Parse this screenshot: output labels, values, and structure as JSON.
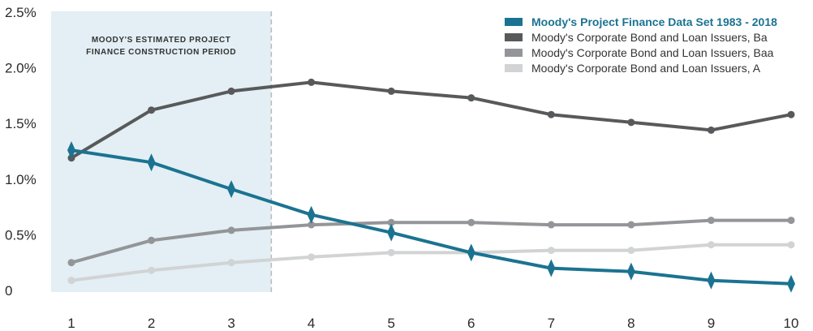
{
  "chart_data": {
    "type": "line",
    "x": [
      1,
      2,
      3,
      4,
      5,
      6,
      7,
      8,
      9,
      10
    ],
    "ylim": [
      0,
      2.5
    ],
    "xlim": [
      1,
      10
    ],
    "y_ticks": [
      {
        "value": 0,
        "label": "0"
      },
      {
        "value": 0.5,
        "label": "0.5%"
      },
      {
        "value": 1.0,
        "label": "1.0%"
      },
      {
        "value": 1.5,
        "label": "1.5%"
      },
      {
        "value": 2.0,
        "label": "2.0%"
      },
      {
        "value": 2.5,
        "label": "2.5%"
      }
    ],
    "x_tick_labels": [
      "1",
      "2",
      "3",
      "4",
      "5",
      "6",
      "7",
      "8",
      "9",
      "10"
    ],
    "shaded_region": {
      "x_start": 0.8,
      "x_end": 3.5,
      "label_line1": "MOODY'S ESTIMATED PROJECT",
      "label_line2": "FINANCE CONSTRUCTION PERIOD"
    },
    "legend_position": "top-right",
    "series": [
      {
        "name": "Moody's Project Finance Data Set 1983 - 2018",
        "color": "#1b7391",
        "marker": "diamond",
        "bold": true,
        "values": [
          1.26,
          1.15,
          0.91,
          0.68,
          0.52,
          0.34,
          0.2,
          0.17,
          0.09,
          0.06
        ]
      },
      {
        "name": "Moody's Corporate Bond and Loan Issuers, Ba",
        "color": "#58595b",
        "marker": "circle",
        "bold": false,
        "values": [
          1.19,
          1.62,
          1.79,
          1.87,
          1.79,
          1.73,
          1.58,
          1.51,
          1.44,
          1.58
        ]
      },
      {
        "name": "Moody's Corporate Bond and Loan Issuers, Baa",
        "color": "#939598",
        "marker": "circle",
        "bold": false,
        "values": [
          0.25,
          0.45,
          0.54,
          0.59,
          0.61,
          0.61,
          0.59,
          0.59,
          0.63,
          0.63
        ]
      },
      {
        "name": "Moody's Corporate Bond and Loan Issuers, A",
        "color": "#d1d3d4",
        "marker": "circle",
        "bold": false,
        "values": [
          0.09,
          0.18,
          0.25,
          0.3,
          0.34,
          0.34,
          0.36,
          0.36,
          0.41,
          0.41
        ]
      }
    ]
  }
}
